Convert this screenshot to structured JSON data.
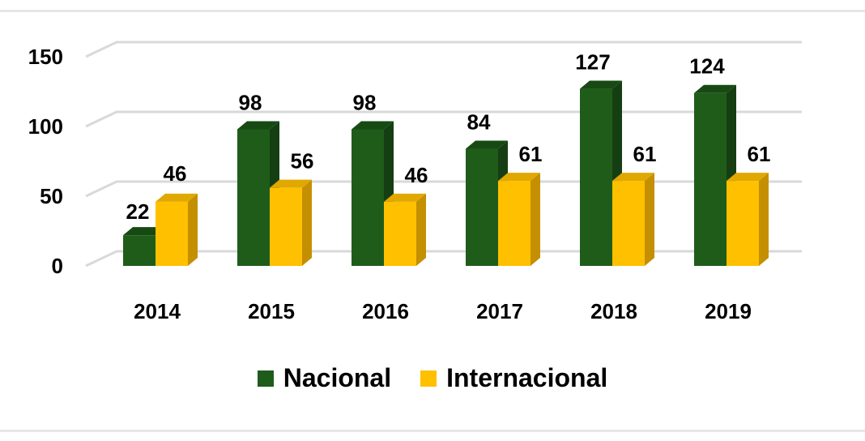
{
  "chart_data": {
    "type": "bar",
    "categories": [
      "2014",
      "2015",
      "2016",
      "2017",
      "2018",
      "2019"
    ],
    "series": [
      {
        "name": "Nacional",
        "values": [
          22,
          98,
          98,
          84,
          127,
          124
        ],
        "color": "#1f5c1a",
        "side_color": "#153f12",
        "top_color": "#174a13"
      },
      {
        "name": "Internacional",
        "values": [
          46,
          56,
          46,
          61,
          61,
          61
        ],
        "color": "#ffc000",
        "side_color": "#c48f00",
        "top_color": "#e0a800"
      }
    ],
    "yticks": [
      "0",
      "50",
      "100",
      "150"
    ],
    "ylim": [
      0,
      150
    ],
    "grid": true,
    "legend_position": "bottom",
    "style": "3d-column"
  }
}
